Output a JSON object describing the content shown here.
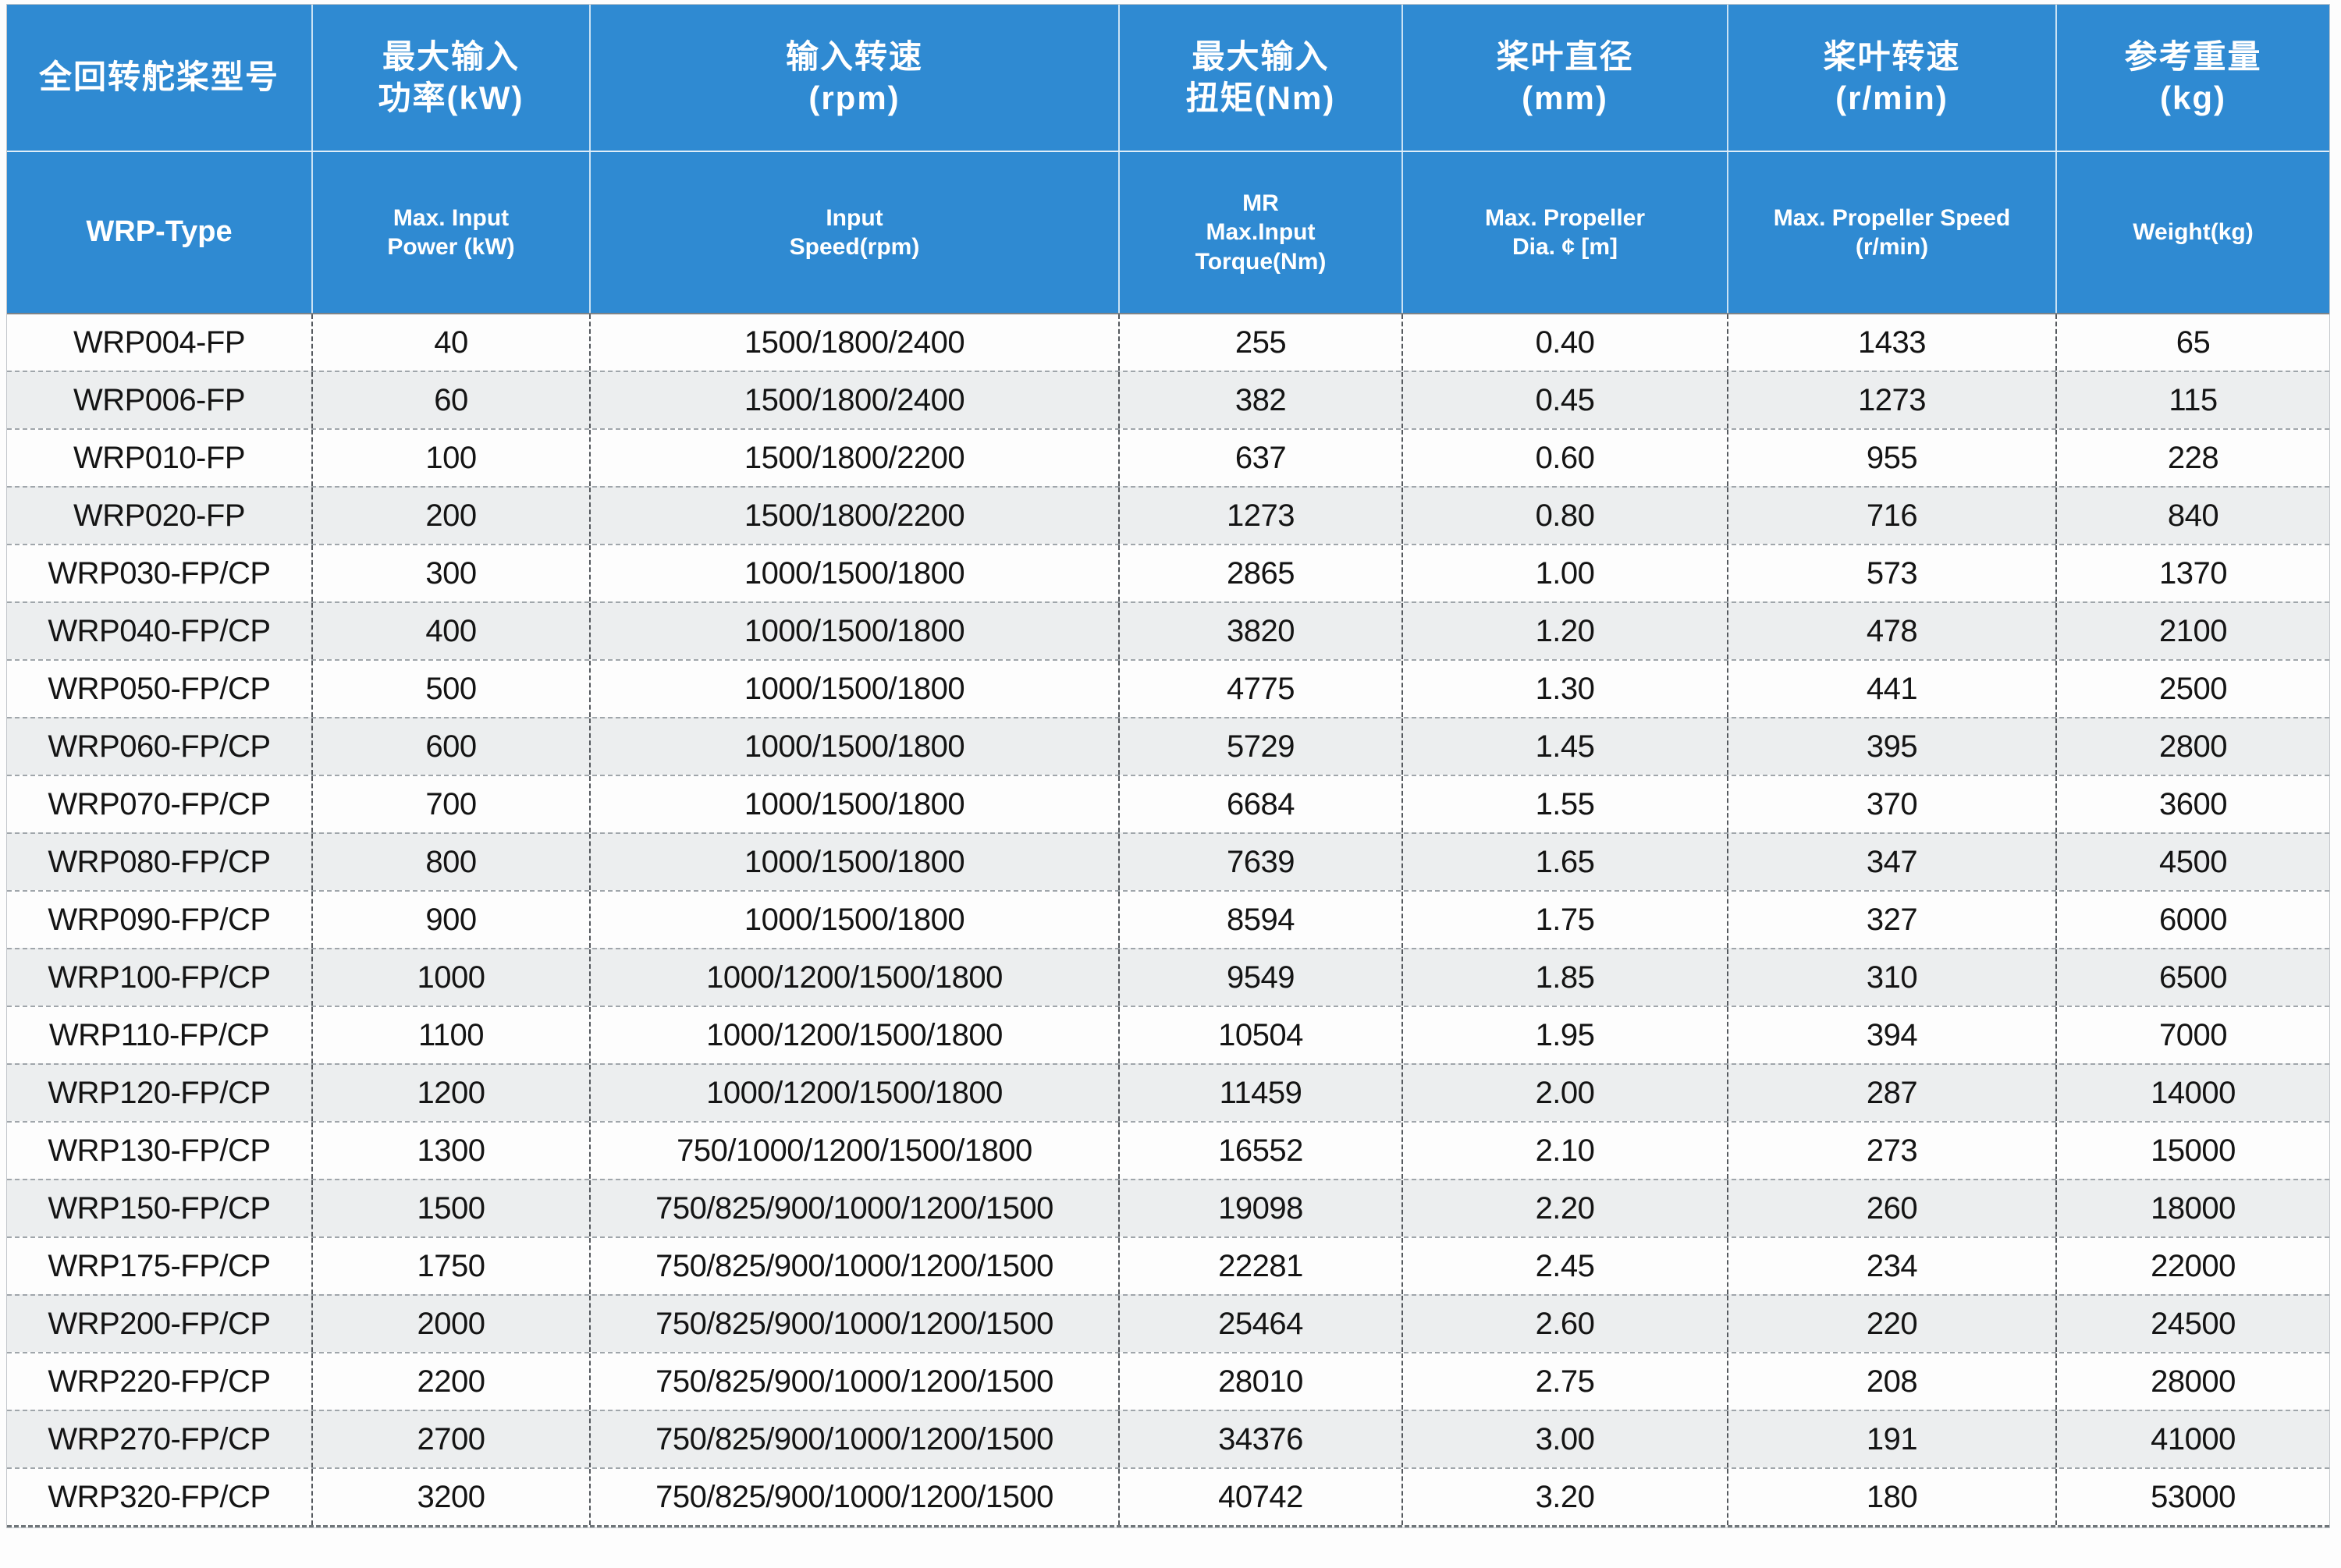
{
  "colors": {
    "header_blue": "#2F8AD2",
    "row_white": "#fdfdfd",
    "row_gray": "#eceeef",
    "body_text": "#141414"
  },
  "table": {
    "columns": [
      {
        "zh": [
          "全回转舵桨型号"
        ],
        "en": [
          "WRP-Type"
        ]
      },
      {
        "zh": [
          "最大输入",
          "功率(kW)"
        ],
        "en": [
          "Max. Input",
          "Power (kW)"
        ]
      },
      {
        "zh": [
          "输入转速",
          "(rpm)"
        ],
        "en": [
          "Input",
          "Speed(rpm)"
        ]
      },
      {
        "zh": [
          "最大输入",
          "扭矩(Nm)"
        ],
        "en": [
          "MR",
          "Max.Input",
          "Torque(Nm)"
        ]
      },
      {
        "zh": [
          "桨叶直径",
          "(mm)"
        ],
        "en": [
          "Max. Propeller",
          "Dia. ¢ [m]"
        ]
      },
      {
        "zh": [
          "桨叶转速",
          "(r/min)"
        ],
        "en": [
          "Max. Propeller Speed",
          "(r/min)"
        ]
      },
      {
        "zh": [
          "参考重量",
          "(kg)"
        ],
        "en": [
          "Weight(kg)"
        ]
      }
    ],
    "rows": [
      [
        "WRP004-FP",
        "40",
        "1500/1800/2400",
        "255",
        "0.40",
        "1433",
        "65"
      ],
      [
        "WRP006-FP",
        "60",
        "1500/1800/2400",
        "382",
        "0.45",
        "1273",
        "115"
      ],
      [
        "WRP010-FP",
        "100",
        "1500/1800/2200",
        "637",
        "0.60",
        "955",
        "228"
      ],
      [
        "WRP020-FP",
        "200",
        "1500/1800/2200",
        "1273",
        "0.80",
        "716",
        "840"
      ],
      [
        "WRP030-FP/CP",
        "300",
        "1000/1500/1800",
        "2865",
        "1.00",
        "573",
        "1370"
      ],
      [
        "WRP040-FP/CP",
        "400",
        "1000/1500/1800",
        "3820",
        "1.20",
        "478",
        "2100"
      ],
      [
        "WRP050-FP/CP",
        "500",
        "1000/1500/1800",
        "4775",
        "1.30",
        "441",
        "2500"
      ],
      [
        "WRP060-FP/CP",
        "600",
        "1000/1500/1800",
        "5729",
        "1.45",
        "395",
        "2800"
      ],
      [
        "WRP070-FP/CP",
        "700",
        "1000/1500/1800",
        "6684",
        "1.55",
        "370",
        "3600"
      ],
      [
        "WRP080-FP/CP",
        "800",
        "1000/1500/1800",
        "7639",
        "1.65",
        "347",
        "4500"
      ],
      [
        "WRP090-FP/CP",
        "900",
        "1000/1500/1800",
        "8594",
        "1.75",
        "327",
        "6000"
      ],
      [
        "WRP100-FP/CP",
        "1000",
        "1000/1200/1500/1800",
        "9549",
        "1.85",
        "310",
        "6500"
      ],
      [
        "WRP110-FP/CP",
        "1100",
        "1000/1200/1500/1800",
        "10504",
        "1.95",
        "394",
        "7000"
      ],
      [
        "WRP120-FP/CP",
        "1200",
        "1000/1200/1500/1800",
        "11459",
        "2.00",
        "287",
        "14000"
      ],
      [
        "WRP130-FP/CP",
        "1300",
        "750/1000/1200/1500/1800",
        "16552",
        "2.10",
        "273",
        "15000"
      ],
      [
        "WRP150-FP/CP",
        "1500",
        "750/825/900/1000/1200/1500",
        "19098",
        "2.20",
        "260",
        "18000"
      ],
      [
        "WRP175-FP/CP",
        "1750",
        "750/825/900/1000/1200/1500",
        "22281",
        "2.45",
        "234",
        "22000"
      ],
      [
        "WRP200-FP/CP",
        "2000",
        "750/825/900/1000/1200/1500",
        "25464",
        "2.60",
        "220",
        "24500"
      ],
      [
        "WRP220-FP/CP",
        "2200",
        "750/825/900/1000/1200/1500",
        "28010",
        "2.75",
        "208",
        "28000"
      ],
      [
        "WRP270-FP/CP",
        "2700",
        "750/825/900/1000/1200/1500",
        "34376",
        "3.00",
        "191",
        "41000"
      ],
      [
        "WRP320-FP/CP",
        "3200",
        "750/825/900/1000/1200/1500",
        "40742",
        "3.20",
        "180",
        "53000"
      ]
    ]
  }
}
